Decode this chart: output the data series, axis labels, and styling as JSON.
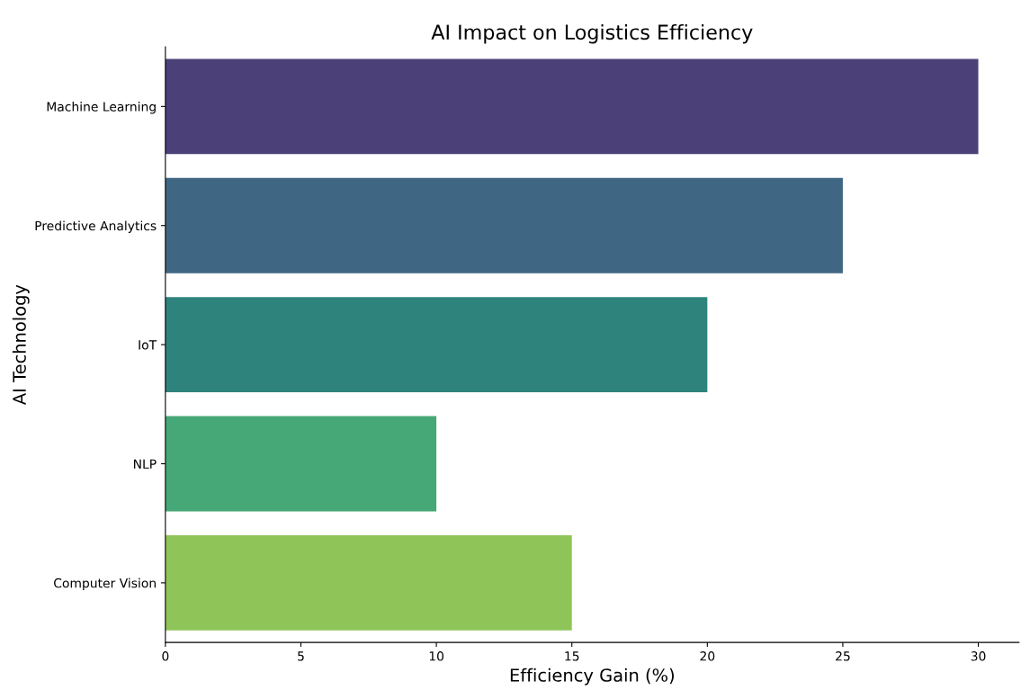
{
  "chart_data": {
    "type": "bar",
    "orientation": "horizontal",
    "title": "AI Impact on Logistics Efficiency",
    "xlabel": "Efficiency Gain (%)",
    "ylabel": "AI Technology",
    "categories": [
      "Machine Learning",
      "Predictive Analytics",
      "IoT",
      "NLP",
      "Computer Vision"
    ],
    "values": [
      30,
      25,
      20,
      10,
      15
    ],
    "colors": [
      "#4b4178",
      "#3f6682",
      "#2e847c",
      "#47a877",
      "#8fc458"
    ],
    "xlim": [
      0,
      31.5
    ],
    "xticks": [
      0,
      5,
      10,
      15,
      20,
      25,
      30
    ],
    "grid": false,
    "legend": false
  }
}
